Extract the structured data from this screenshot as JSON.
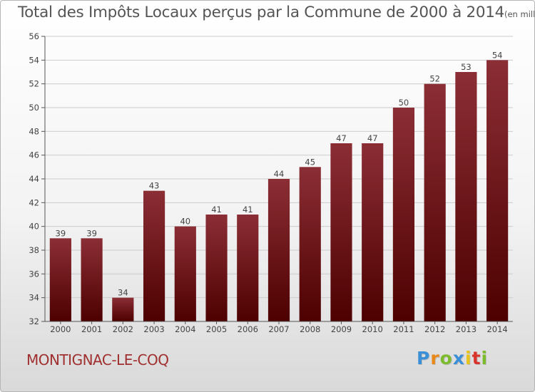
{
  "title": {
    "main": "Total des Impôts Locaux perçus par la Commune de 2000 à 2014",
    "unit": "(en milliers d'€)"
  },
  "commune": "MONTIGNAC-LE-COQ",
  "logo": {
    "letters": [
      "P",
      "r",
      "o",
      "x",
      "i",
      "t",
      "i"
    ],
    "colors": [
      "#3a8fd6",
      "#e8891a",
      "#7dbb2e",
      "#3a8fd6",
      "#e8c41a",
      "#d9342b",
      "#7dbb2e"
    ]
  },
  "colors": {
    "bar_top": "#8b2e35",
    "bar_bottom": "#4d0000",
    "grid": "#cccccc"
  },
  "chart_data": {
    "type": "bar",
    "title": "Total des Impôts Locaux perçus par la Commune de 2000 à 2014",
    "xlabel": "",
    "ylabel": "(en milliers d'€)",
    "categories": [
      "2000",
      "2001",
      "2002",
      "2003",
      "2004",
      "2005",
      "2006",
      "2007",
      "2008",
      "2009",
      "2010",
      "2011",
      "2012",
      "2013",
      "2014"
    ],
    "values": [
      39,
      39,
      34,
      43,
      40,
      41,
      41,
      44,
      45,
      47,
      47,
      50,
      52,
      53,
      54
    ],
    "ylim": [
      32,
      56
    ],
    "yticks": [
      32,
      34,
      36,
      38,
      40,
      42,
      44,
      46,
      48,
      50,
      52,
      54,
      56
    ],
    "grid": true
  }
}
